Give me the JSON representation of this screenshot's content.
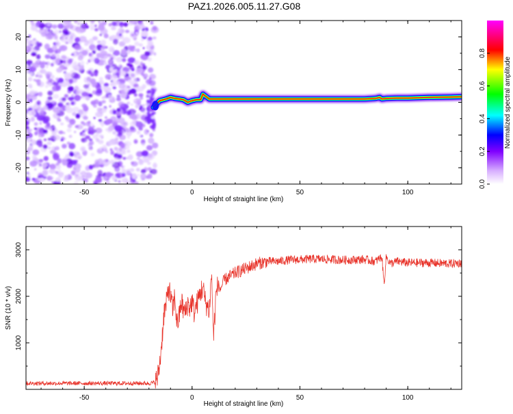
{
  "chart_data": [
    {
      "type": "heatmap",
      "title": "PAZ1.2026.005.11.27.G08",
      "xlabel": "Height of straight line (km)",
      "ylabel": "Frequency (Hz)",
      "xlim": [
        -77,
        125
      ],
      "ylim": [
        -25,
        25
      ],
      "xticks": [
        -50,
        0,
        50,
        100
      ],
      "yticks": [
        20,
        10,
        0,
        -10,
        -20
      ],
      "noise_region": {
        "x_from": -77,
        "x_to": -18,
        "description_level": 0.2
      },
      "ridge": {
        "x": [
          -18,
          -15,
          -12,
          -10,
          -8,
          -6,
          -4,
          -2,
          0,
          2,
          4,
          5,
          6,
          7,
          8,
          10,
          15,
          20,
          30,
          40,
          50,
          60,
          70,
          80,
          85,
          87,
          88,
          90,
          95,
          100,
          110,
          120,
          125
        ],
        "freq_hz": [
          -1.5,
          0.5,
          1.0,
          1.5,
          1.2,
          1.0,
          0.8,
          0.0,
          0.5,
          0.8,
          0.8,
          2.5,
          2.0,
          1.5,
          1.0,
          1.0,
          1.0,
          1.0,
          1.0,
          1.0,
          1.0,
          1.0,
          1.0,
          1.0,
          1.2,
          1.5,
          1.0,
          1.2,
          1.3,
          1.3,
          1.5,
          1.6,
          1.7
        ]
      },
      "colorbar": {
        "label": "Normalized spectral amplitude",
        "range": [
          0,
          1
        ],
        "ticks": [
          0.0,
          0.2,
          0.4,
          0.6,
          0.8
        ],
        "colors": [
          "#ffffff",
          "#d8b0ff",
          "#8000ff",
          "#0000ff",
          "#00ffff",
          "#00ff00",
          "#ffff00",
          "#ff0000",
          "#ff00ff"
        ],
        "stops": [
          0,
          0.08,
          0.2,
          0.3,
          0.42,
          0.55,
          0.7,
          0.82,
          1
        ]
      },
      "grid": false
    },
    {
      "type": "line",
      "xlabel": "Height of straight line (km)",
      "ylabel": "SNR (10 * v/v)",
      "xlim": [
        -77,
        125
      ],
      "ylim": [
        0,
        3500
      ],
      "xticks": [
        -50,
        0,
        50,
        100
      ],
      "yticks": [
        1000,
        2000,
        3000
      ],
      "color": "#e8332a",
      "grid": false,
      "series": [
        {
          "x": [
            -77,
            -60,
            -40,
            -20,
            -17,
            -16,
            -15,
            -14,
            -13,
            -12,
            -11,
            -10,
            -9,
            -8,
            -7,
            -6,
            -5,
            -4,
            -3,
            -2,
            -1,
            0,
            1,
            2,
            3,
            4,
            5,
            6,
            7,
            8,
            9,
            10,
            11,
            12,
            13,
            15,
            20,
            25,
            30,
            35,
            40,
            45,
            50,
            55,
            60,
            70,
            80,
            85,
            88,
            89,
            90,
            92,
            95,
            100,
            110,
            120,
            125
          ],
          "values": [
            130,
            130,
            130,
            130,
            150,
            250,
            550,
            1050,
            1650,
            1800,
            2200,
            2000,
            1700,
            2000,
            1400,
            1550,
            1900,
            1700,
            1650,
            1850,
            1750,
            1900,
            1650,
            1800,
            1950,
            2100,
            2200,
            1900,
            1800,
            1700,
            2500,
            1100,
            2000,
            2250,
            2150,
            2350,
            2500,
            2600,
            2700,
            2750,
            2750,
            2780,
            2790,
            2800,
            2800,
            2780,
            2790,
            2750,
            2850,
            2250,
            2850,
            2700,
            2750,
            2720,
            2720,
            2700,
            2720
          ]
        }
      ]
    }
  ]
}
